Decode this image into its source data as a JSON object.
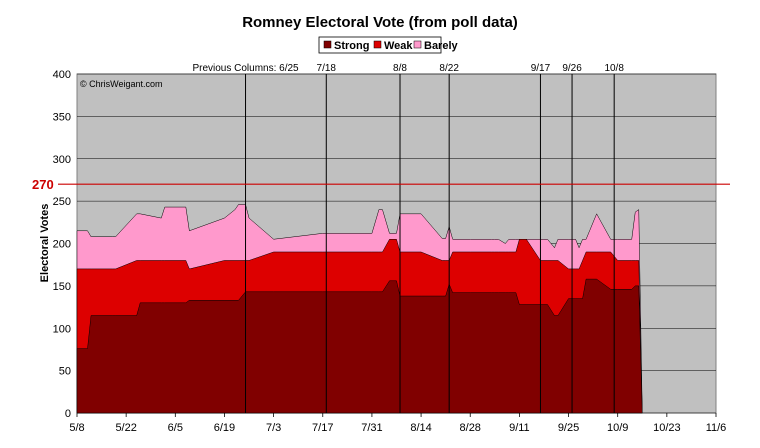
{
  "chart_data": {
    "type": "area",
    "title": "Romney Electoral Vote (from poll data)",
    "ylabel": "Electoral Votes",
    "xlabel": "",
    "ylim": [
      0,
      400
    ],
    "yticks": [
      0,
      50,
      100,
      150,
      200,
      250,
      300,
      350,
      400
    ],
    "xlim": [
      "5/8",
      "11/6"
    ],
    "x_tick_labels": [
      "5/8",
      "5/22",
      "6/5",
      "6/19",
      "7/3",
      "7/17",
      "7/31",
      "8/14",
      "8/28",
      "9/11",
      "9/25",
      "10/9",
      "10/23",
      "11/6"
    ],
    "grid": true,
    "plot_background": "#c0c0c0",
    "legend_position": "top-center",
    "stacked": true,
    "threshold": {
      "value": 270,
      "label": "270",
      "color": "#cc0000"
    },
    "copyright": "© ChrisWeigant.com",
    "annotations": [
      {
        "date": "6/25",
        "label": "Previous Columns: 6/25"
      },
      {
        "date": "7/18",
        "label": "7/18"
      },
      {
        "date": "8/8",
        "label": "8/8"
      },
      {
        "date": "8/22",
        "label": "8/22"
      },
      {
        "date": "9/17",
        "label": "9/17"
      },
      {
        "date": "9/26",
        "label": "9/26"
      },
      {
        "date": "10/8",
        "label": "10/8"
      }
    ],
    "dates": [
      "5/8",
      "5/11",
      "5/12",
      "5/18",
      "5/19",
      "5/25",
      "5/26",
      "6/1",
      "6/2",
      "6/8",
      "6/9",
      "6/19",
      "6/22",
      "6/23",
      "6/25",
      "6/26",
      "7/3",
      "7/17",
      "7/31",
      "8/2",
      "8/3",
      "8/5",
      "8/7",
      "8/8",
      "8/14",
      "8/20",
      "8/21",
      "8/22",
      "8/23",
      "8/28",
      "9/3",
      "9/4",
      "9/5",
      "9/7",
      "9/8",
      "9/10",
      "9/11",
      "9/13",
      "9/17",
      "9/18",
      "9/19",
      "9/21",
      "9/22",
      "9/25",
      "9/27",
      "9/28",
      "9/29",
      "9/30",
      "10/1",
      "10/3",
      "10/7",
      "10/9",
      "10/13",
      "10/14",
      "10/15",
      "10/16"
    ],
    "series": [
      {
        "name": "Strong",
        "color": "#800000",
        "values": [
          76,
          76,
          115,
          115,
          115,
          115,
          130,
          130,
          130,
          130,
          133,
          133,
          133,
          133,
          143,
          143,
          143,
          143,
          143,
          143,
          143,
          156,
          156,
          138,
          138,
          138,
          138,
          152,
          142,
          142,
          142,
          142,
          142,
          142,
          142,
          142,
          128,
          128,
          128,
          128,
          128,
          115,
          115,
          135,
          135,
          135,
          135,
          158,
          158,
          158,
          146,
          146,
          146,
          150,
          150,
          0
        ]
      },
      {
        "name": "Weak",
        "color": "#dd0000",
        "values": [
          170,
          170,
          170,
          170,
          170,
          180,
          180,
          180,
          180,
          180,
          170,
          180,
          180,
          180,
          180,
          180,
          190,
          190,
          190,
          190,
          190,
          205,
          205,
          190,
          190,
          180,
          180,
          180,
          190,
          190,
          190,
          190,
          190,
          190,
          190,
          190,
          205,
          205,
          180,
          180,
          180,
          180,
          180,
          170,
          170,
          170,
          180,
          190,
          190,
          190,
          190,
          180,
          180,
          180,
          180,
          0
        ]
      },
      {
        "name": "Barely",
        "color": "#ff99cc",
        "values": [
          215,
          215,
          208,
          208,
          208,
          235,
          235,
          230,
          243,
          243,
          215,
          230,
          240,
          246,
          246,
          230,
          205,
          212,
          212,
          240,
          240,
          212,
          212,
          235,
          235,
          206,
          206,
          220,
          205,
          205,
          205,
          205,
          205,
          200,
          205,
          205,
          205,
          205,
          205,
          205,
          205,
          195,
          205,
          205,
          205,
          195,
          205,
          205,
          215,
          235,
          205,
          205,
          205,
          237,
          240,
          0
        ]
      }
    ]
  }
}
